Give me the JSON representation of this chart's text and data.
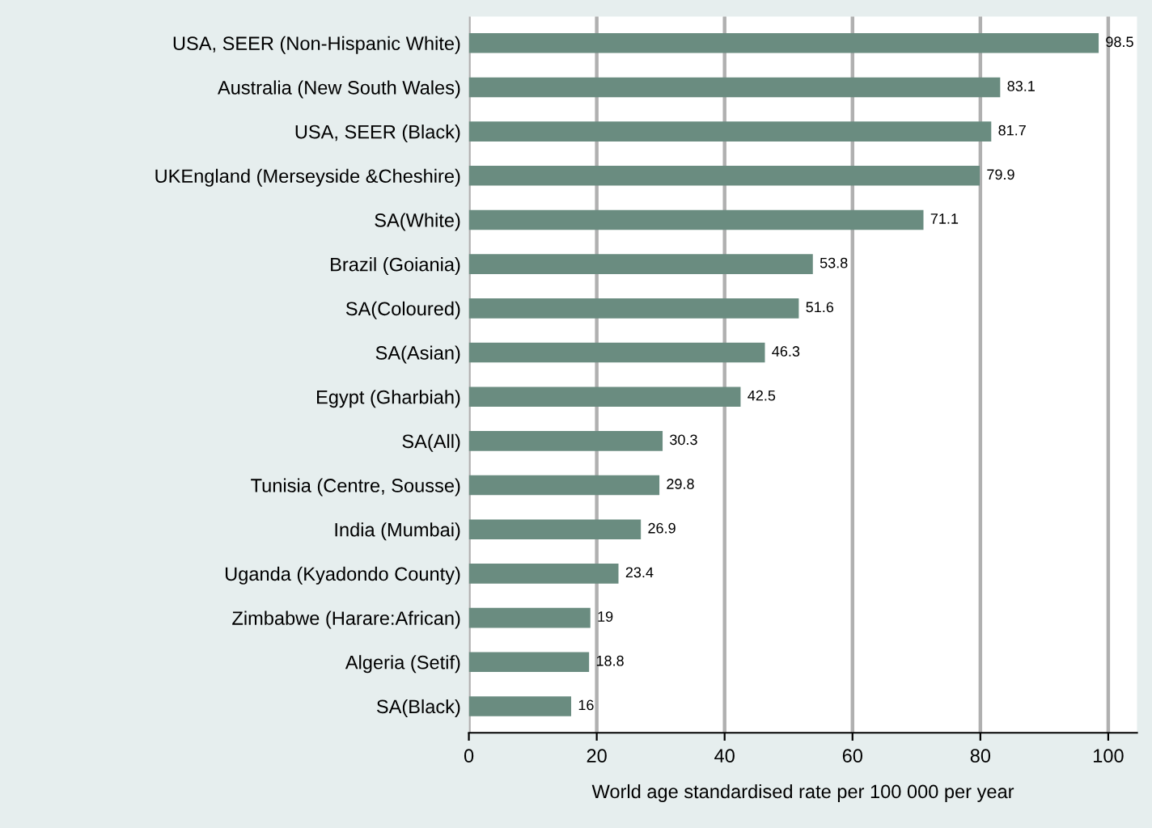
{
  "chart_data": {
    "type": "bar",
    "orientation": "horizontal",
    "categories": [
      "USA, SEER (Non-Hispanic White)",
      "Australia (New South Wales)",
      "USA, SEER (Black)",
      "UKEngland (Merseyside &Cheshire)",
      "SA(White)",
      "Brazil (Goiania)",
      "SA(Coloured)",
      "SA(Asian)",
      "Egypt (Gharbiah)",
      "SA(All)",
      "Tunisia (Centre, Sousse)",
      "India (Mumbai)",
      "Uganda (Kyadondo County)",
      "Zimbabwe (Harare:African)",
      "Algeria (Setif)",
      "SA(Black)"
    ],
    "values": [
      98.5,
      83.1,
      81.7,
      79.9,
      71.1,
      53.8,
      51.6,
      46.3,
      42.5,
      30.3,
      29.8,
      26.9,
      23.4,
      19,
      18.8,
      16
    ],
    "color": "#6a8c80",
    "xlabel": "World age standardised rate per 100 000 per year",
    "xlim": [
      0,
      104.5
    ],
    "xticks": [
      0,
      20,
      40,
      60,
      80,
      100
    ],
    "grid": "x",
    "data_labels": true
  }
}
